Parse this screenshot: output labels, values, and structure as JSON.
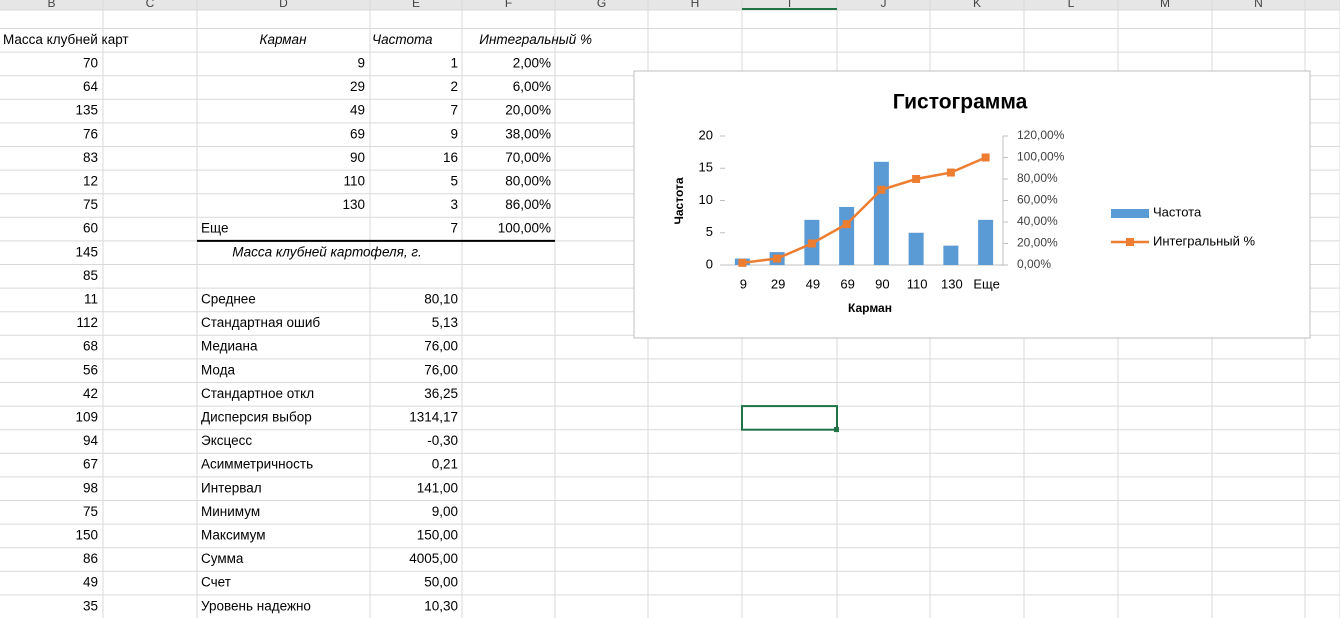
{
  "column_headers": [
    "B",
    "C",
    "D",
    "E",
    "F",
    "G",
    "H",
    "I",
    "J",
    "K",
    "L",
    "M",
    "N"
  ],
  "column_b": {
    "header": "Масса клубней карт",
    "values": [
      "70",
      "64",
      "135",
      "76",
      "83",
      "12",
      "75",
      "60",
      "145",
      "85",
      "11",
      "112",
      "68",
      "56",
      "42",
      "109",
      "94",
      "67",
      "98",
      "75",
      "150",
      "86",
      "49",
      "35"
    ]
  },
  "bins_table": {
    "headers": [
      "Карман",
      "Частота",
      "Интегральный %"
    ],
    "rows": [
      [
        "9",
        "1",
        "2,00%"
      ],
      [
        "29",
        "2",
        "6,00%"
      ],
      [
        "49",
        "7",
        "20,00%"
      ],
      [
        "69",
        "9",
        "38,00%"
      ],
      [
        "90",
        "16",
        "70,00%"
      ],
      [
        "110",
        "5",
        "80,00%"
      ],
      [
        "130",
        "3",
        "86,00%"
      ],
      [
        "Еще",
        "7",
        "100,00%"
      ]
    ]
  },
  "stats_table": {
    "title": "Масса клубней картофеля, г.",
    "rows": [
      [
        "Среднее",
        "80,10"
      ],
      [
        "Стандартная ошиб",
        "5,13"
      ],
      [
        "Медиана",
        "76,00"
      ],
      [
        "Мода",
        "76,00"
      ],
      [
        "Стандартное откл",
        "36,25"
      ],
      [
        "Дисперсия выбор",
        "1314,17"
      ],
      [
        "Эксцесс",
        "-0,30"
      ],
      [
        "Асимметричность",
        "0,21"
      ],
      [
        "Интервал",
        "141,00"
      ],
      [
        "Минимум",
        "9,00"
      ],
      [
        "Максимум",
        "150,00"
      ],
      [
        "Сумма",
        "4005,00"
      ],
      [
        "Счет",
        "50,00"
      ],
      [
        "Уровень надежно",
        "10,30"
      ]
    ]
  },
  "chart_data": {
    "type": "bar",
    "title": "Гистограмма",
    "x_label": "Карман",
    "y_label": "Частота",
    "categories": [
      "9",
      "29",
      "49",
      "69",
      "90",
      "110",
      "130",
      "Еще"
    ],
    "series": [
      {
        "name": "Частота",
        "type": "bar",
        "color": "#5b9bd5",
        "values": [
          1,
          2,
          7,
          9,
          16,
          5,
          3,
          7
        ]
      },
      {
        "name": "Интегральный %",
        "type": "line",
        "color": "#ed7d31",
        "axis": "y2",
        "values": [
          2,
          6,
          20,
          38,
          70,
          80,
          86,
          100
        ]
      }
    ],
    "ylim": [
      0,
      20
    ],
    "yticks": [
      0,
      5,
      10,
      15,
      20
    ],
    "y2lim": [
      0,
      120
    ],
    "y2ticks": [
      {
        "value": 0,
        "label": "0,00%"
      },
      {
        "value": 20,
        "label": "20,00%"
      },
      {
        "value": 40,
        "label": "40,00%"
      },
      {
        "value": 60,
        "label": "60,00%"
      },
      {
        "value": 80,
        "label": "80,00%"
      },
      {
        "value": 100,
        "label": "100,00%"
      },
      {
        "value": 120,
        "label": "120,00%"
      }
    ],
    "legend": "right"
  }
}
